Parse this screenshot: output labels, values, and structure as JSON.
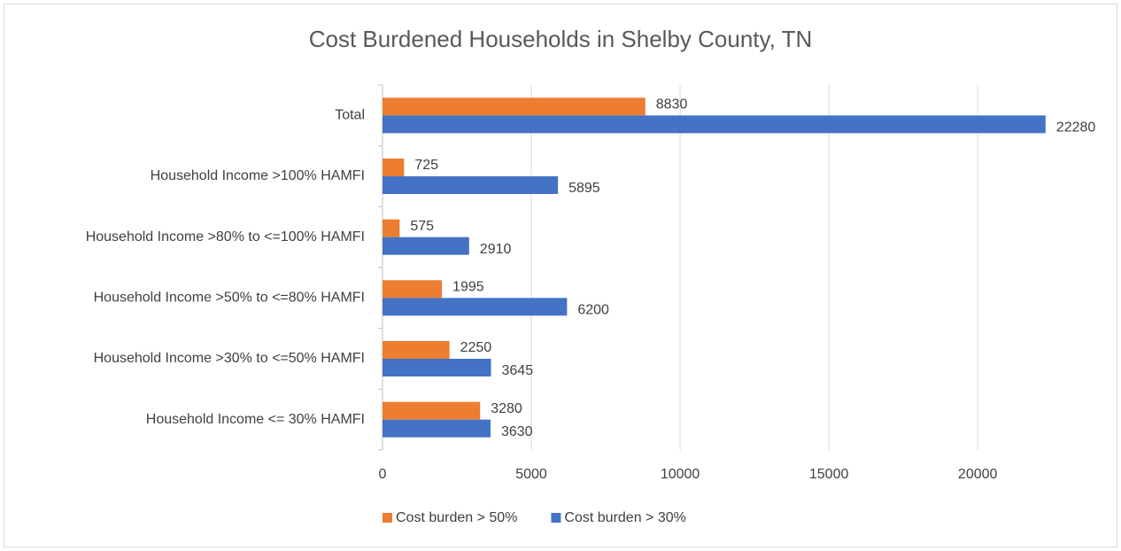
{
  "chart_data": {
    "type": "hbar",
    "title": "Cost Burdened Households in Shelby County, TN",
    "categories": [
      "Total",
      "Household Income >100% HAMFI",
      "Household Income >80% to <=100% HAMFI",
      "Household Income >50% to <=80% HAMFI",
      "Household Income >30% to <=50% HAMFI",
      "Household Income <= 30% HAMFI"
    ],
    "series": [
      {
        "name": "Cost burden > 50%",
        "color": "#ed7d31",
        "values": [
          8830,
          725,
          575,
          1995,
          2250,
          3280
        ]
      },
      {
        "name": "Cost burden > 30%",
        "color": "#4472c4",
        "values": [
          22280,
          5895,
          2910,
          6200,
          3645,
          3630
        ]
      }
    ],
    "xlim": [
      0,
      23000
    ],
    "xticks": [
      0,
      5000,
      10000,
      15000,
      20000
    ],
    "grid": true,
    "legend": "bottom"
  }
}
